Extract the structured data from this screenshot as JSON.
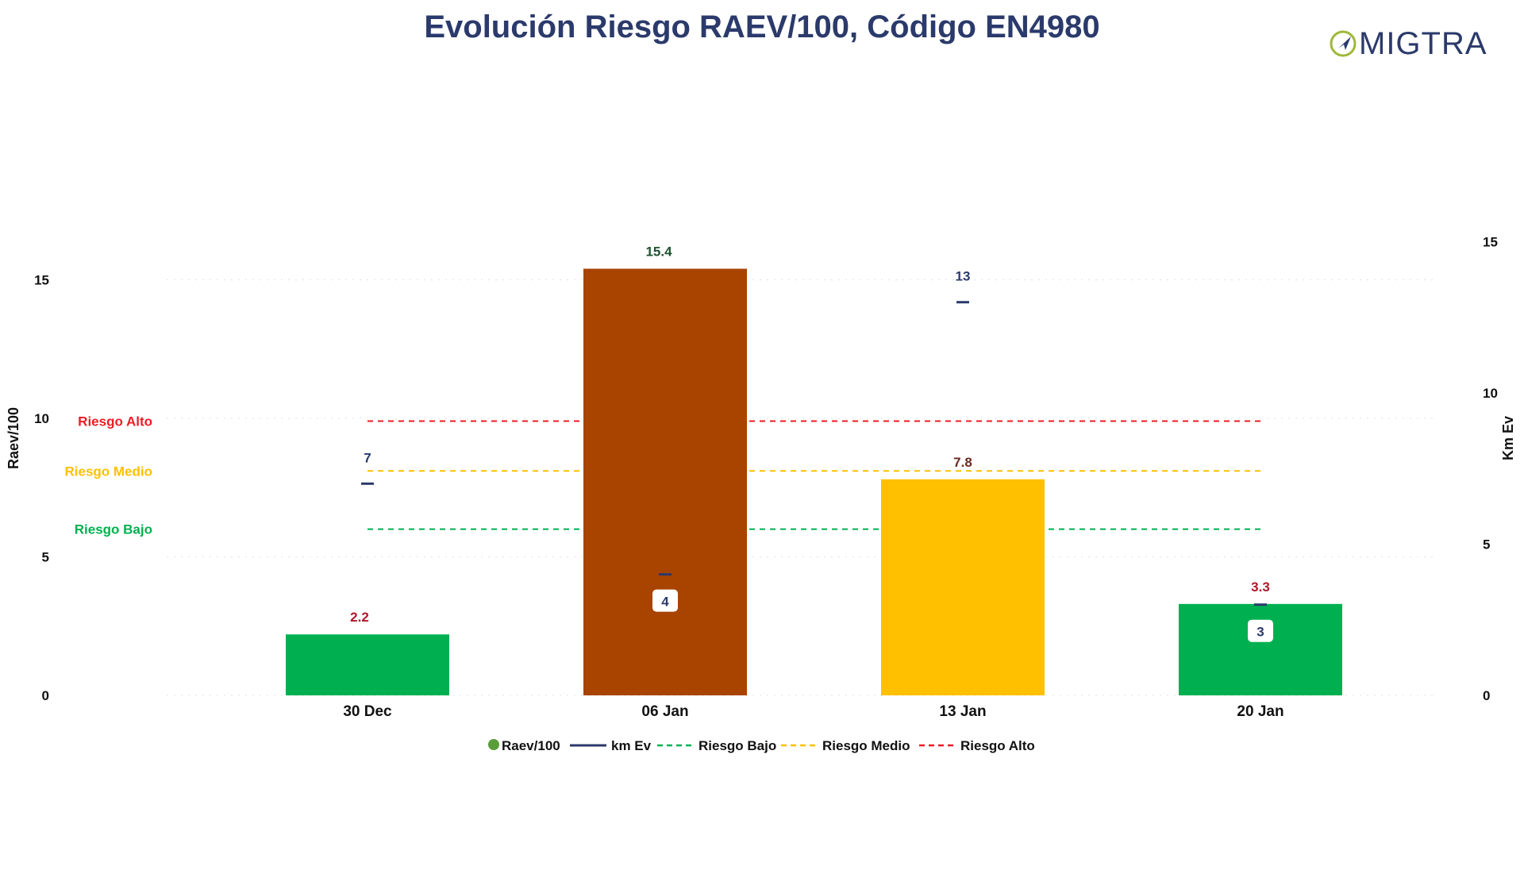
{
  "chart_data": {
    "type": "bar",
    "title": "Evolución Riesgo RAEV/100, Código EN4980",
    "categories": [
      "30 Dec",
      "06 Jan",
      "13 Jan",
      "20 Jan"
    ],
    "series": [
      {
        "name": "Raev/100",
        "axis": "left",
        "kind": "bar",
        "values": [
          2.2,
          15.4,
          7.8,
          3.3
        ],
        "colors": [
          "#00b050",
          "#a84300",
          "#ffc000",
          "#00b050"
        ],
        "labels": [
          "2.2",
          "15.4",
          "7.8",
          "3.3"
        ],
        "label_colors": [
          "#b0182b",
          "#1e5130",
          "#6b2a1f",
          "#b0182b"
        ]
      },
      {
        "name": "km Ev",
        "axis": "right",
        "kind": "marker",
        "values": [
          7,
          4,
          13,
          3
        ],
        "labels": [
          "7",
          "4",
          "13",
          "3"
        ],
        "color": "#2b3a6b"
      }
    ],
    "thresholds": [
      {
        "name": "Riesgo Bajo",
        "value": 6.0,
        "color": "#00b050"
      },
      {
        "name": "Riesgo Medio",
        "value": 8.1,
        "color": "#ffc000"
      },
      {
        "name": "Riesgo Alto",
        "value": 9.9,
        "color": "#ee1c25"
      }
    ],
    "ylabel_left": "Raev/100",
    "ylabel_right": "Km Ev",
    "ylim_left": [
      0,
      17.5
    ],
    "yticks_left": [
      0,
      5,
      10,
      15
    ],
    "ylim_right": [
      0,
      17.5
    ],
    "yticks_right": [
      0,
      5,
      10,
      15
    ],
    "grid": true,
    "legend_position": "bottom-center"
  },
  "logo": {
    "text": "MIGTRA",
    "color": "#2b3a6b",
    "accent": "#9fb83a"
  },
  "colors": {
    "title": "#2b3a6b",
    "axis_text": "#111111"
  }
}
